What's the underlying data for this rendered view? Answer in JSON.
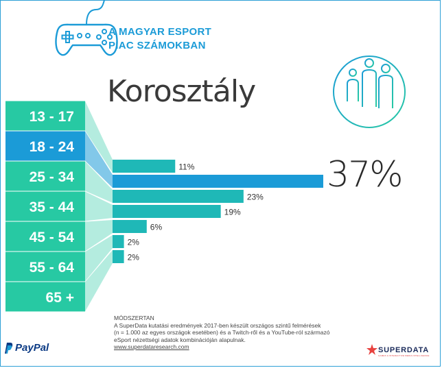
{
  "header": {
    "title_line1": "A MAGYAR ESPORT",
    "title_line2": "PIAC SZÁMOKBAN",
    "icon": "gamepad-icon"
  },
  "chart_data": {
    "type": "bar",
    "title": "Korosztály",
    "categories": [
      "13 - 17",
      "18 - 24",
      "25 - 34",
      "35 - 44",
      "45 - 54",
      "55 - 64",
      "65 +"
    ],
    "values": [
      11,
      37,
      23,
      19,
      6,
      2,
      2
    ],
    "value_labels": [
      "11%",
      "37%",
      "23%",
      "19%",
      "6%",
      "2%",
      "2%"
    ],
    "highlight": "18 - 24",
    "xlim": [
      0,
      37
    ],
    "grid": false,
    "colors": {
      "bar": "#1fb8b7",
      "highlight": "#1b9bd7",
      "label_box": "#27c9a3",
      "label_box_highlight": "#1b9bd7"
    }
  },
  "people_icon": "family-icon",
  "methodology": {
    "heading": "MÓDSZERTAN",
    "line1": "A SuperData kutatási eredmények 2017-ben készült országos szintű felmérések",
    "line2": "(n = 1.000 az egyes országok esetében) és a Twitch-ről és a YouTube-ról származó",
    "line3": "eSport nézettségi adatok kombinációján alapulnak.",
    "link": "www.superdataresearch.com"
  },
  "logos": {
    "paypal": "PayPal",
    "superdata": "SUPERDATA",
    "superdata_tagline": "GAMES & INTERACTIVE MEDIA INTELLIGENCE"
  }
}
